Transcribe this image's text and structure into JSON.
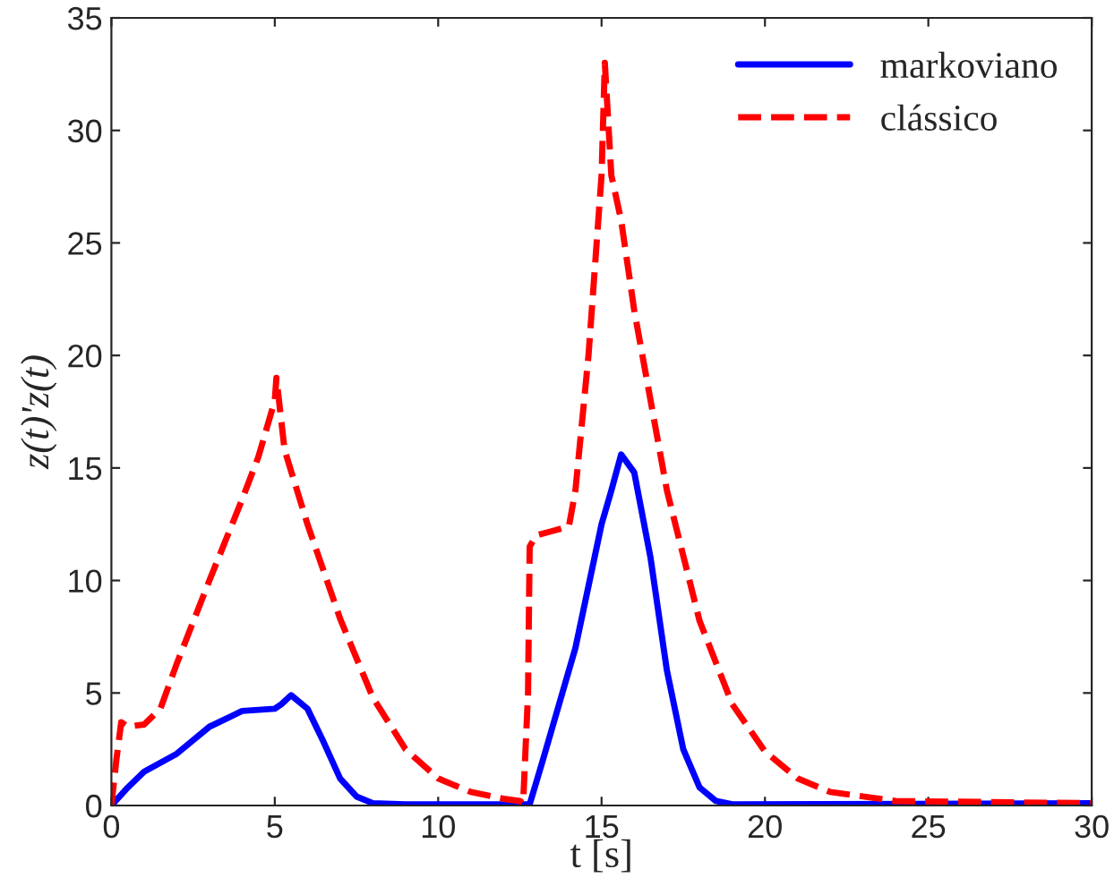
{
  "chart_data": {
    "type": "line",
    "xlabel": "t [s]",
    "ylabel": "z(t)'z(t)",
    "xlim": [
      0,
      30
    ],
    "xticks": [
      0,
      5,
      10,
      15,
      20,
      25,
      30
    ],
    "ylim": [
      0,
      35
    ],
    "yticks": [
      0,
      5,
      10,
      15,
      20,
      25,
      30,
      35
    ],
    "grid": false,
    "legend": "top right",
    "series": [
      {
        "name": "markoviano",
        "color": "#0000ff",
        "line_style": "solid",
        "x": [
          0,
          0.5,
          1,
          2,
          3,
          4,
          5,
          5.2,
          5.5,
          6,
          6.5,
          7,
          7.5,
          8,
          9,
          12.5,
          12.8,
          13.2,
          13.7,
          14.2,
          15,
          15.3,
          15.6,
          16,
          16.5,
          17,
          17.5,
          18,
          18.5,
          19,
          30
        ],
        "values": [
          0,
          0.8,
          1.5,
          2.3,
          3.5,
          4.2,
          4.3,
          4.5,
          4.9,
          4.3,
          2.8,
          1.2,
          0.4,
          0.1,
          0.05,
          0.05,
          0.05,
          2,
          4.5,
          7,
          12.5,
          14,
          15.6,
          14.8,
          11,
          6,
          2.5,
          0.8,
          0.2,
          0.05,
          0.1
        ]
      },
      {
        "name": "clássico",
        "color": "#ff0000",
        "line_style": "dashed",
        "x": [
          0,
          0.15,
          0.3,
          0.5,
          1,
          1.5,
          2,
          3,
          4,
          4.5,
          5,
          5.05,
          5.3,
          6,
          7,
          8,
          9,
          10,
          11,
          12,
          12.5,
          12.6,
          12.75,
          12.8,
          13,
          13.5,
          14,
          14.2,
          14.6,
          15,
          15.1,
          15.3,
          15.6,
          16,
          17,
          18,
          19,
          20,
          21,
          22,
          24,
          30
        ],
        "values": [
          0,
          2,
          3.7,
          3.5,
          3.6,
          4.3,
          6.3,
          10,
          13.6,
          15.5,
          18,
          19,
          15.8,
          12.5,
          8.3,
          4.8,
          2.5,
          1.2,
          0.6,
          0.3,
          0.2,
          0.1,
          5,
          11.5,
          12,
          12.2,
          12.4,
          14,
          20,
          28,
          33,
          28,
          26,
          22,
          14,
          8.2,
          4.5,
          2.4,
          1.2,
          0.6,
          0.2,
          0.1
        ]
      }
    ]
  }
}
